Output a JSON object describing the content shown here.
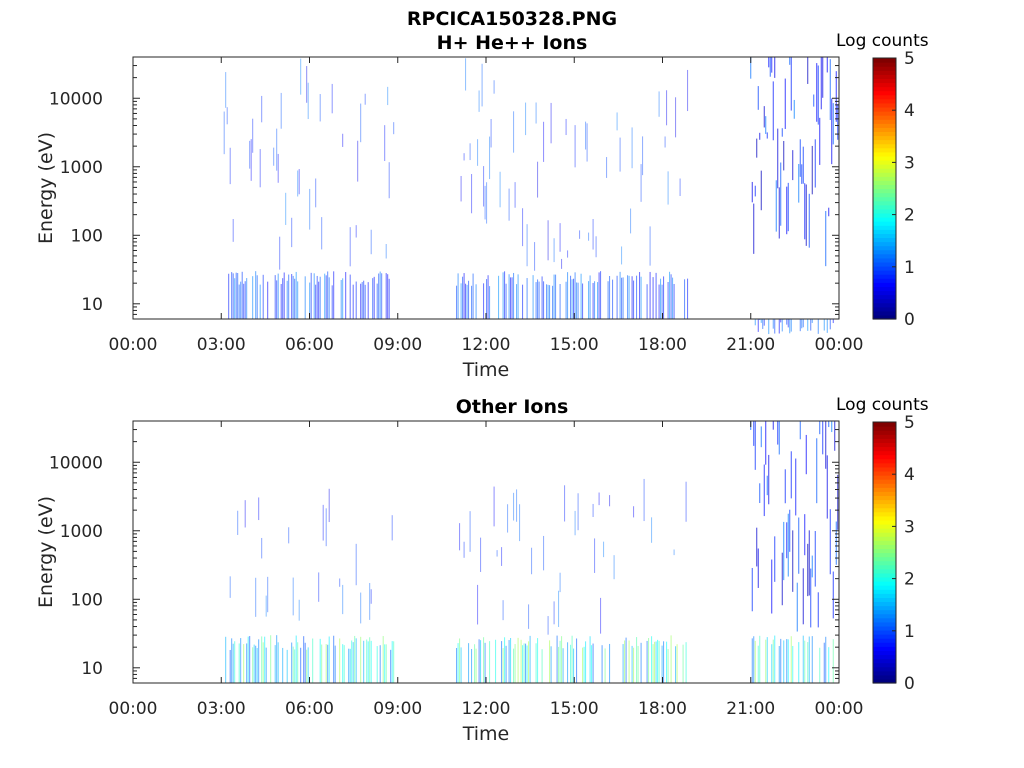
{
  "figure": {
    "title_line1": "RPCICA150328.PNG",
    "title_line2": "H+ He++ Ions"
  },
  "chart_data": [
    {
      "type": "heatmap",
      "title": "H+ He++ Ions",
      "xlabel": "Time",
      "ylabel": "Energy (eV)",
      "x_ticks": [
        "00:00",
        "03:00",
        "06:00",
        "09:00",
        "12:00",
        "15:00",
        "18:00",
        "21:00",
        "00:00"
      ],
      "y_ticks": [
        "10",
        "100",
        "1000",
        "10000"
      ],
      "y_scale": "log",
      "x_range_hours": [
        0,
        24
      ],
      "y_range_eV": [
        6,
        40000
      ],
      "colorbar": {
        "label": "Log counts",
        "ticks": [
          "0",
          "1",
          "2",
          "3",
          "4",
          "5"
        ],
        "range": [
          0,
          5
        ],
        "colormap": "jet"
      },
      "data_segments_hours": [
        [
          3.1,
          8.9
        ],
        [
          11.0,
          18.9
        ],
        [
          21.0,
          24.0
        ]
      ]
    },
    {
      "type": "heatmap",
      "title": "Other Ions",
      "xlabel": "Time",
      "ylabel": "Energy (eV)",
      "x_ticks": [
        "00:00",
        "03:00",
        "06:00",
        "09:00",
        "12:00",
        "15:00",
        "18:00",
        "21:00",
        "00:00"
      ],
      "y_ticks": [
        "10",
        "100",
        "1000",
        "10000"
      ],
      "y_scale": "log",
      "x_range_hours": [
        0,
        24
      ],
      "y_range_eV": [
        6,
        40000
      ],
      "colorbar": {
        "label": "Log counts",
        "ticks": [
          "0",
          "1",
          "2",
          "3",
          "4",
          "5"
        ],
        "range": [
          0,
          5
        ],
        "colormap": "jet"
      },
      "data_segments_hours": [
        [
          3.1,
          8.9
        ],
        [
          11.0,
          18.9
        ],
        [
          21.0,
          24.0
        ]
      ]
    }
  ]
}
